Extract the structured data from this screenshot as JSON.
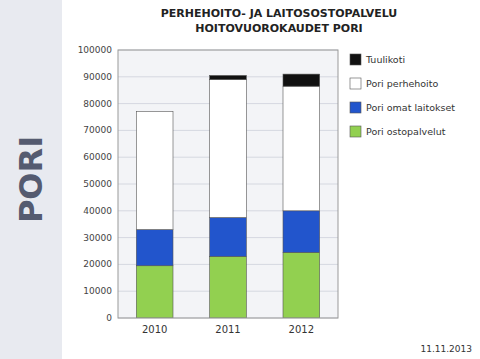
{
  "chart_data": {
    "type": "bar",
    "title": "PERHEHOITO- JA LAITOSOSTOPALVELU",
    "subtitle": "HOITOVUOROKAUDET PORI",
    "annotations": [
      "PORI",
      "11.11.2013"
    ],
    "categories": [
      "2010",
      "2011",
      "2012"
    ],
    "series": [
      {
        "name": "Pori ostopalvelut",
        "color": "#92d050",
        "values": [
          19500,
          23000,
          24500
        ]
      },
      {
        "name": "Pori omat laitokset",
        "color": "#2255cc",
        "values": [
          13500,
          14500,
          15500
        ]
      },
      {
        "name": "Pori perhehoito",
        "color": "#ffffff",
        "values": [
          44000,
          51500,
          46500
        ]
      },
      {
        "name": "Tuulikoti",
        "color": "#111111",
        "values": [
          0,
          1500,
          4500
        ]
      }
    ],
    "stacked": true,
    "ylim": [
      0,
      100000
    ],
    "yticks": [
      0,
      10000,
      20000,
      30000,
      40000,
      50000,
      60000,
      70000,
      80000,
      90000,
      100000
    ],
    "grid": true,
    "legend": "right"
  }
}
